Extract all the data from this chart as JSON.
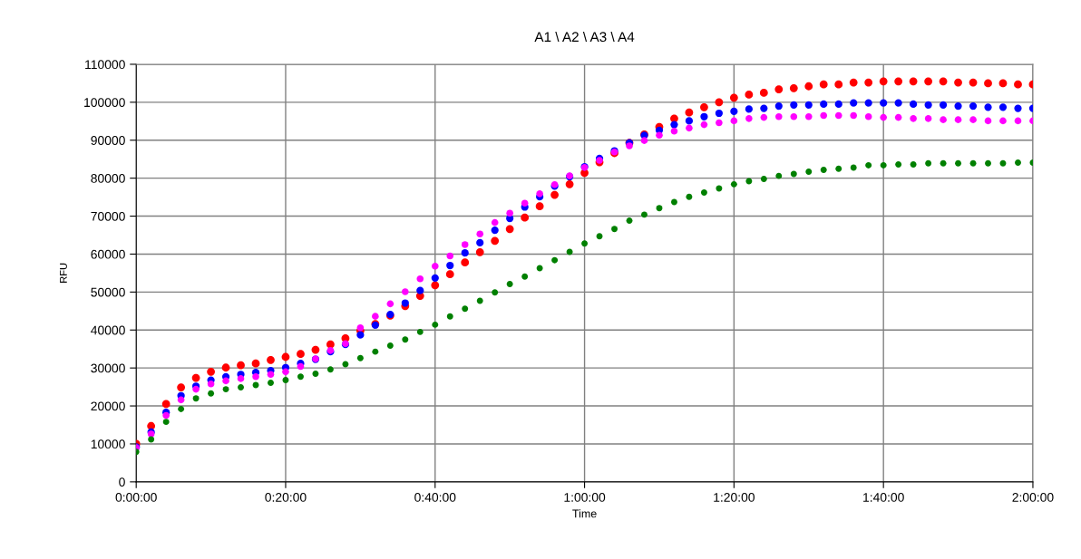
{
  "chart_data": {
    "type": "scatter",
    "title": "A1 \\ A2 \\ A3 \\ A4",
    "xlabel": "Time",
    "ylabel": "RFU",
    "x": [
      0,
      0.0333,
      0.0667,
      0.1,
      0.1333,
      0.1667,
      0.2,
      0.2333,
      0.2667,
      0.3,
      0.3333,
      0.3667,
      0.4,
      0.4333,
      0.4667,
      0.5,
      0.5333,
      0.5667,
      0.6,
      0.6333,
      0.6667,
      0.7,
      0.7333,
      0.7667,
      0.8,
      0.8333,
      0.8667,
      0.9,
      0.9333,
      0.9667,
      1,
      1.0333,
      1.0667,
      1.1,
      1.1333,
      1.1667,
      1.2,
      1.2333,
      1.2667,
      1.3,
      1.3333,
      1.3667,
      1.4,
      1.4333,
      1.4667,
      1.5,
      1.5333,
      1.5667,
      1.6,
      1.6333,
      1.6667,
      1.7,
      1.7333,
      1.7667,
      1.8,
      1.8333,
      1.8667,
      1.9,
      1.9333,
      1.9667,
      2
    ],
    "series": [
      {
        "color": "#ff0000",
        "values": [
          10000,
          14700,
          20500,
          24900,
          27400,
          29000,
          30100,
          30700,
          31200,
          32100,
          32900,
          33700,
          34800,
          36200,
          37800,
          39800,
          41600,
          43800,
          46300,
          49000,
          51800,
          54700,
          57800,
          60500,
          63500,
          66600,
          69600,
          72600,
          75600,
          78400,
          81400,
          84200,
          86600,
          89300,
          91500,
          93500,
          95700,
          97300,
          98700,
          100000,
          101200,
          102000,
          102500,
          103400,
          103700,
          104200,
          104700,
          104700,
          105200,
          105200,
          105500,
          105500,
          105500,
          105500,
          105500,
          105200,
          105200,
          105000,
          105000,
          104700,
          104700
        ]
      },
      {
        "color": "#0000ff",
        "values": [
          9200,
          13100,
          18300,
          22700,
          25200,
          26800,
          27700,
          28300,
          28800,
          29300,
          30100,
          31200,
          32300,
          34300,
          36200,
          38700,
          41300,
          44100,
          47100,
          50400,
          53700,
          57000,
          60300,
          63000,
          66300,
          69400,
          72400,
          75100,
          77900,
          80400,
          83000,
          85200,
          87200,
          89300,
          91300,
          92600,
          94100,
          95100,
          96200,
          97100,
          97600,
          98200,
          98400,
          99000,
          99300,
          99300,
          99500,
          99500,
          99800,
          99800,
          99800,
          99800,
          99500,
          99300,
          99300,
          99000,
          99000,
          98700,
          98700,
          98400,
          98400
        ]
      },
      {
        "color": "#ff00ff",
        "values": [
          9000,
          12600,
          17500,
          21600,
          24400,
          25800,
          26600,
          27200,
          27700,
          28300,
          29000,
          30400,
          32400,
          34600,
          36400,
          40600,
          43600,
          46900,
          50100,
          53500,
          56800,
          59500,
          62500,
          65300,
          68300,
          70800,
          73400,
          75900,
          78300,
          80600,
          82800,
          84700,
          86900,
          88500,
          89900,
          91300,
          92400,
          93200,
          94100,
          94600,
          95100,
          95700,
          96000,
          96200,
          96200,
          96200,
          96500,
          96500,
          96500,
          96200,
          96000,
          96000,
          95700,
          95700,
          95400,
          95400,
          95400,
          95100,
          95100,
          95100,
          95100
        ]
      },
      {
        "color": "#008000",
        "values": [
          7900,
          11200,
          15800,
          19200,
          22000,
          23300,
          24400,
          24900,
          25500,
          26100,
          26800,
          27700,
          28500,
          29600,
          31000,
          32600,
          34300,
          35900,
          37500,
          39500,
          41400,
          43600,
          45600,
          47700,
          49900,
          52100,
          54100,
          56300,
          58400,
          60600,
          62800,
          64700,
          66600,
          68800,
          70400,
          72100,
          73700,
          75100,
          76200,
          77300,
          78400,
          79200,
          79800,
          80600,
          81100,
          81700,
          82200,
          82500,
          82800,
          83400,
          83400,
          83600,
          83600,
          83900,
          83900,
          83900,
          83900,
          83900,
          83900,
          84100,
          84100
        ]
      }
    ],
    "xlim": [
      0,
      2
    ],
    "xticks": [
      {
        "value": 0,
        "label": "0:00:00"
      },
      {
        "value": 0.3333,
        "label": "0:20:00"
      },
      {
        "value": 0.6667,
        "label": "0:40:00"
      },
      {
        "value": 1,
        "label": "1:00:00"
      },
      {
        "value": 1.3333,
        "label": "1:20:00"
      },
      {
        "value": 1.6667,
        "label": "1:40:00"
      },
      {
        "value": 2,
        "label": "2:00:00"
      }
    ],
    "ylim": [
      0,
      110000
    ],
    "yticks": [
      0,
      10000,
      20000,
      30000,
      40000,
      50000,
      60000,
      70000,
      80000,
      90000,
      100000,
      110000
    ],
    "grid": true,
    "marker": "circle"
  }
}
